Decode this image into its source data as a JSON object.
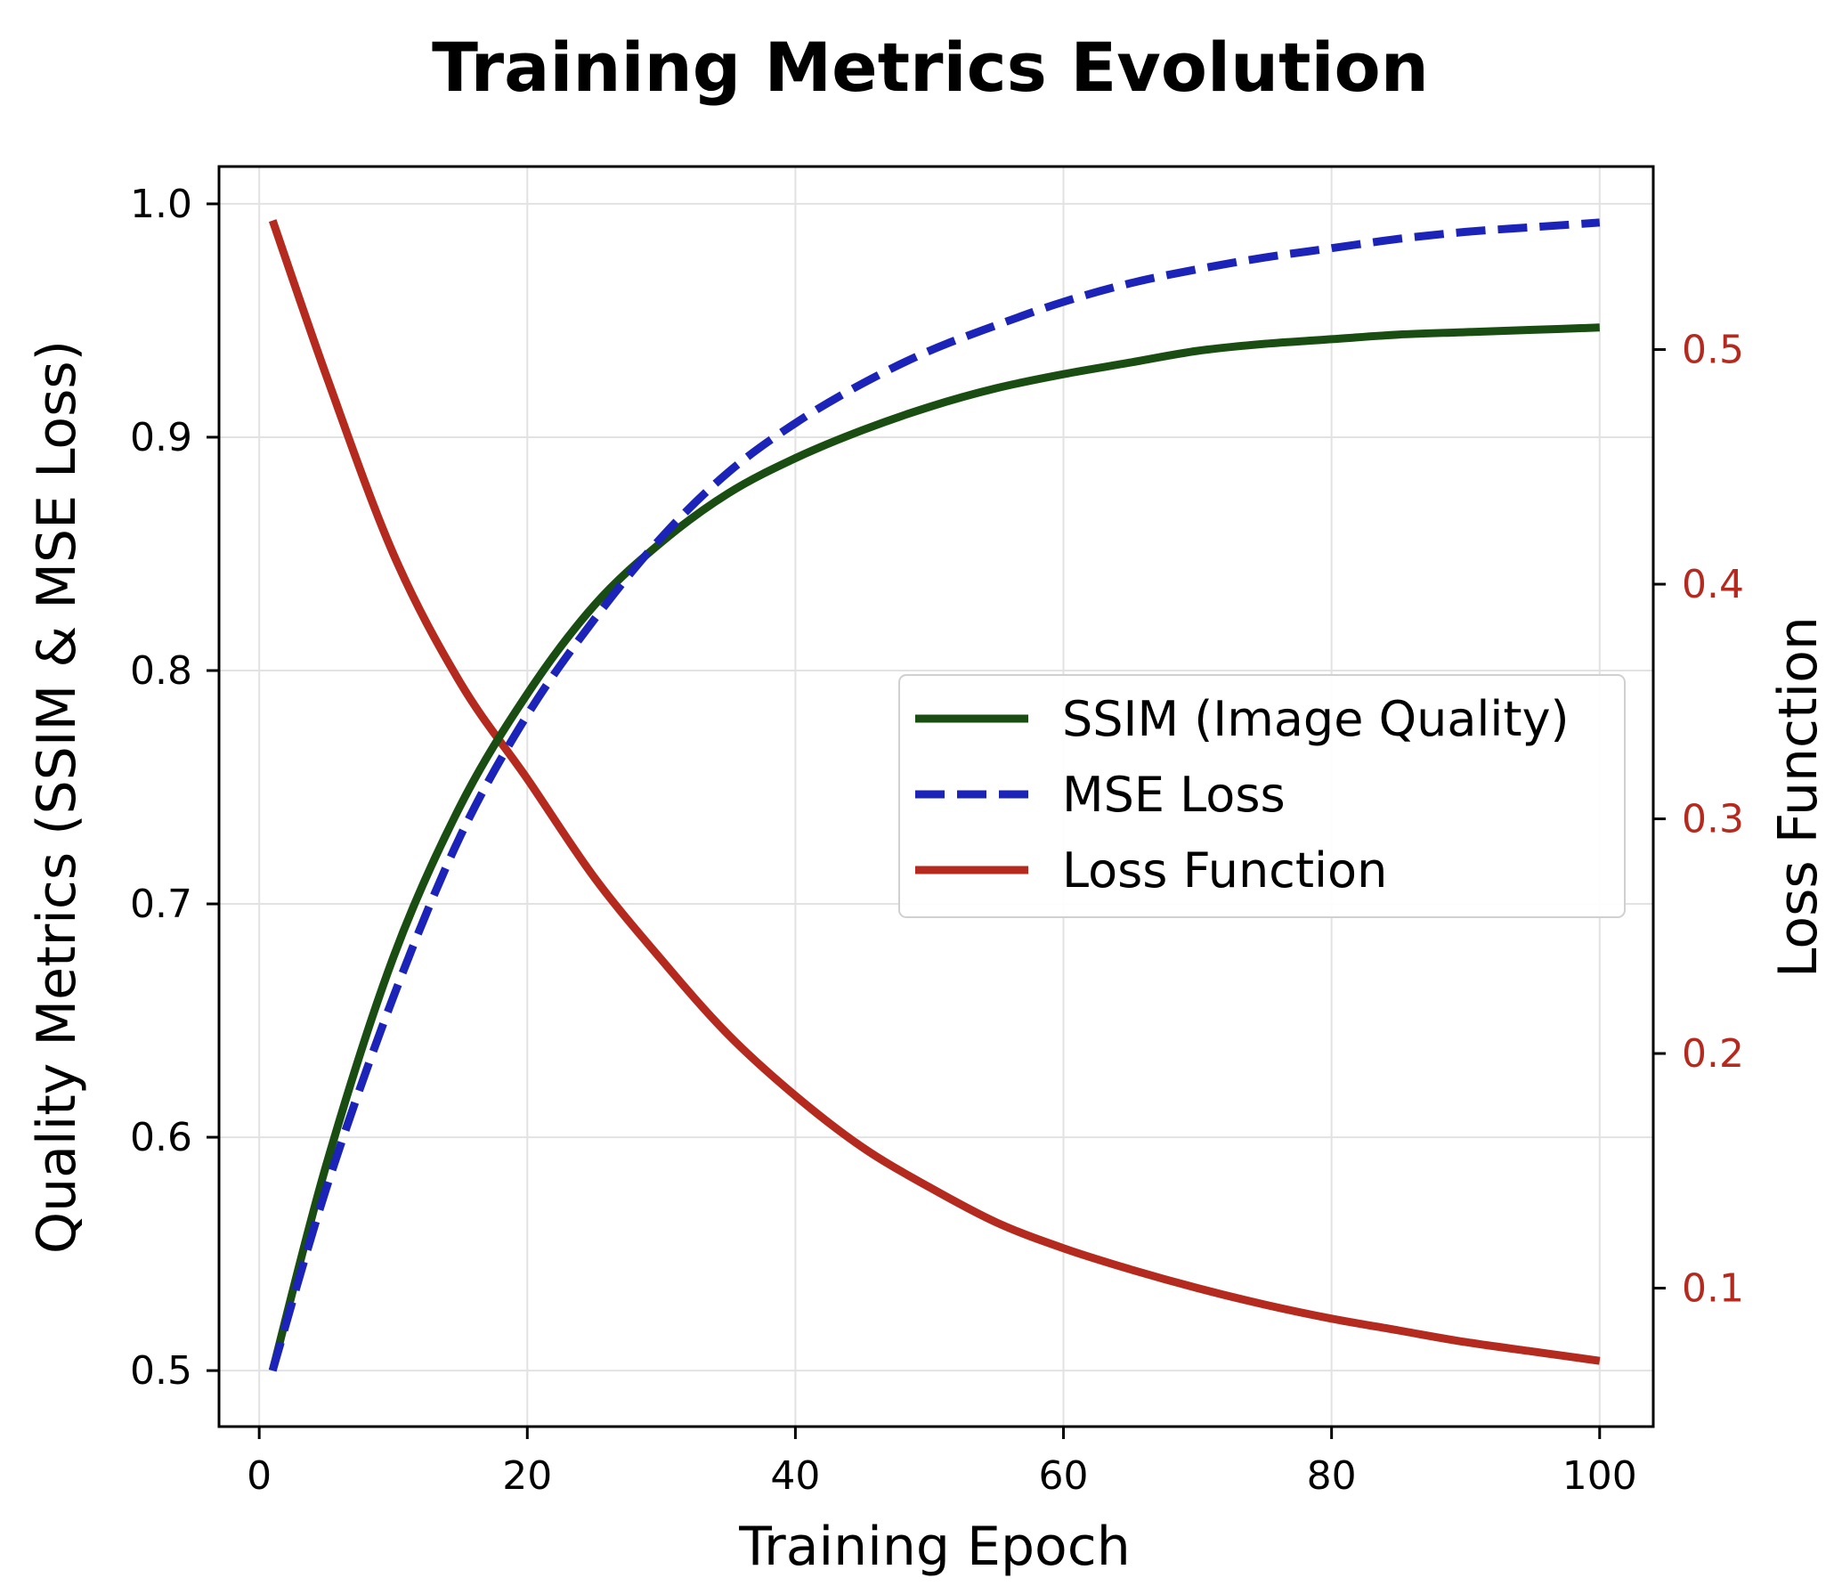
{
  "chart_data": {
    "type": "line",
    "title": "Training Metrics Evolution",
    "xlabel": "Training Epoch",
    "ylabel_left": "Quality Metrics (SSIM & MSE Loss)",
    "ylabel_right": "Loss Function",
    "xlim": [
      -3,
      104
    ],
    "ylim_left": [
      0.476,
      1.016
    ],
    "ylim_right": [
      0.041,
      0.578
    ],
    "xticks": [
      0,
      20,
      40,
      60,
      80,
      100
    ],
    "xtick_labels": [
      "0",
      "20",
      "40",
      "60",
      "80",
      "100"
    ],
    "yticks_left": [
      0.5,
      0.6,
      0.7,
      0.8,
      0.9,
      1.0
    ],
    "ytick_labels_left": [
      "0.5",
      "0.6",
      "0.7",
      "0.8",
      "0.9",
      "1.0"
    ],
    "yticks_right": [
      0.1,
      0.2,
      0.3,
      0.4,
      0.5
    ],
    "ytick_labels_right": [
      "0.1",
      "0.2",
      "0.3",
      "0.4",
      "0.5"
    ],
    "grid": true,
    "legend_position": "center-right",
    "legend_labels": [
      "SSIM (Image Quality)",
      "MSE Loss",
      "Loss Function"
    ],
    "colors": {
      "ssim": "#1a4d12",
      "mse": "#1c23b8",
      "loss": "#b52a1f",
      "right_axis": "#b52a1f"
    },
    "x": [
      1,
      5,
      10,
      15,
      20,
      25,
      30,
      35,
      40,
      45,
      50,
      55,
      60,
      65,
      70,
      75,
      80,
      85,
      90,
      95,
      100
    ],
    "series": [
      {
        "name": "SSIM (Image Quality)",
        "axis": "left",
        "style": "solid",
        "values": [
          0.5,
          0.588,
          0.677,
          0.742,
          0.79,
          0.828,
          0.855,
          0.876,
          0.891,
          0.903,
          0.913,
          0.921,
          0.927,
          0.932,
          0.937,
          0.94,
          0.942,
          0.944,
          0.945,
          0.946,
          0.947
        ]
      },
      {
        "name": "MSE Loss",
        "axis": "left",
        "style": "dashed",
        "values": [
          0.5,
          0.578,
          0.66,
          0.729,
          0.781,
          0.822,
          0.857,
          0.885,
          0.906,
          0.923,
          0.937,
          0.948,
          0.958,
          0.966,
          0.972,
          0.977,
          0.981,
          0.985,
          0.988,
          0.99,
          0.992
        ]
      },
      {
        "name": "Loss Function",
        "axis": "right",
        "style": "solid",
        "values": [
          0.555,
          0.489,
          0.413,
          0.358,
          0.317,
          0.275,
          0.24,
          0.208,
          0.182,
          0.16,
          0.143,
          0.128,
          0.117,
          0.108,
          0.1,
          0.093,
          0.087,
          0.082,
          0.077,
          0.073,
          0.069
        ]
      }
    ]
  }
}
